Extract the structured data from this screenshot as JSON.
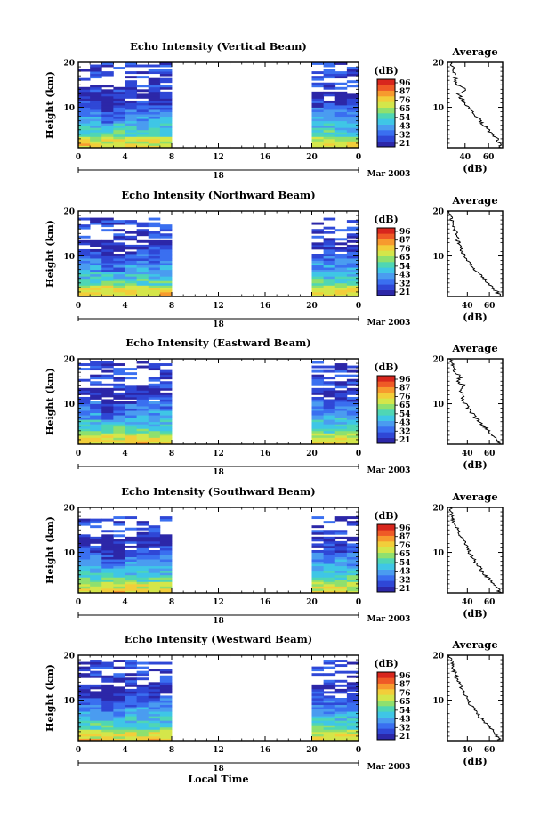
{
  "figure": {
    "xlabel": "Local Time",
    "date_label": "Mar 2003",
    "colorbar_unit": "(dB)",
    "average_title": "Average",
    "average_xlabel": "(dB)",
    "colorbar_ticks": [
      "96",
      "87",
      "76",
      "65",
      "54",
      "43",
      "32",
      "21"
    ],
    "colors": [
      "#2c27a8",
      "#2f47d6",
      "#3a6ff0",
      "#4a9cf0",
      "#3fc6e6",
      "#4fd6b4",
      "#8fe06e",
      "#d4e64a",
      "#f2ce3a",
      "#f79a2e",
      "#ef5a26",
      "#d8261d"
    ]
  },
  "chart_data": [
    {
      "type": "heatmap",
      "title": "Echo Intensity (Vertical Beam)",
      "ylabel": "Height (km)",
      "x_ticks": [
        "0",
        "4",
        "8",
        "12",
        "16",
        "20",
        "0"
      ],
      "date_tick": "18",
      "xlim": [
        0,
        24
      ],
      "ylim": [
        1,
        20
      ],
      "y_ticks": [
        "20",
        "10"
      ],
      "data_gaps": [
        [
          8,
          20
        ]
      ],
      "echo_top_km": 19.5,
      "avg_xticks": [
        "40",
        "60"
      ],
      "avg_xlim": [
        25,
        72
      ],
      "average_profile": [
        [
          1,
          70
        ],
        [
          2,
          69
        ],
        [
          3,
          67
        ],
        [
          4,
          63
        ],
        [
          5,
          60
        ],
        [
          6,
          56
        ],
        [
          7,
          53
        ],
        [
          8,
          50
        ],
        [
          9,
          47
        ],
        [
          10,
          43
        ],
        [
          11,
          40
        ],
        [
          12,
          37
        ],
        [
          13,
          34
        ],
        [
          14,
          40
        ],
        [
          15,
          33
        ],
        [
          16,
          32
        ],
        [
          17,
          31
        ],
        [
          18,
          30
        ],
        [
          19,
          29
        ],
        [
          20,
          28
        ]
      ]
    },
    {
      "type": "heatmap",
      "title": "Echo Intensity (Northward Beam)",
      "ylabel": "Height (km)",
      "x_ticks": [
        "0",
        "4",
        "8",
        "12",
        "16",
        "20",
        "0"
      ],
      "date_tick": "18",
      "xlim": [
        0,
        24
      ],
      "ylim": [
        1,
        20
      ],
      "y_ticks": [
        "20",
        "10"
      ],
      "data_gaps": [
        [
          8,
          20
        ]
      ],
      "echo_top_km": 18,
      "avg_xticks": [
        "40",
        "60"
      ],
      "avg_xlim": [
        22,
        72
      ],
      "average_profile": [
        [
          1,
          70
        ],
        [
          2,
          67
        ],
        [
          3,
          63
        ],
        [
          4,
          59
        ],
        [
          5,
          55
        ],
        [
          6,
          51
        ],
        [
          7,
          47
        ],
        [
          8,
          44
        ],
        [
          9,
          41
        ],
        [
          10,
          37
        ],
        [
          11,
          35
        ],
        [
          12,
          33
        ],
        [
          13,
          32
        ],
        [
          14,
          31
        ],
        [
          15,
          30
        ],
        [
          16,
          28
        ],
        [
          17,
          27
        ],
        [
          18,
          26
        ],
        [
          19,
          25
        ],
        [
          20,
          24
        ]
      ]
    },
    {
      "type": "heatmap",
      "title": "Echo Intensity (Eastward Beam)",
      "ylabel": "Height (km)",
      "x_ticks": [
        "0",
        "4",
        "8",
        "12",
        "16",
        "20",
        "0"
      ],
      "date_tick": "18",
      "xlim": [
        0,
        24
      ],
      "ylim": [
        1,
        20
      ],
      "y_ticks": [
        "20",
        "10"
      ],
      "data_gaps": [
        [
          8,
          20
        ]
      ],
      "echo_top_km": 19,
      "avg_xticks": [
        "40",
        "60"
      ],
      "avg_xlim": [
        22,
        72
      ],
      "average_profile": [
        [
          1,
          70
        ],
        [
          2,
          67
        ],
        [
          3,
          63
        ],
        [
          4,
          59
        ],
        [
          5,
          55
        ],
        [
          6,
          51
        ],
        [
          7,
          47
        ],
        [
          8,
          44
        ],
        [
          9,
          41
        ],
        [
          10,
          38
        ],
        [
          11,
          36
        ],
        [
          12,
          35
        ],
        [
          13,
          33
        ],
        [
          14,
          38
        ],
        [
          15,
          30
        ],
        [
          16,
          34
        ],
        [
          17,
          29
        ],
        [
          18,
          27
        ],
        [
          19,
          26
        ],
        [
          20,
          24
        ]
      ]
    },
    {
      "type": "heatmap",
      "title": "Echo Intensity (Southward Beam)",
      "ylabel": "Height (km)",
      "x_ticks": [
        "0",
        "4",
        "8",
        "12",
        "16",
        "20",
        "0"
      ],
      "date_tick": "18",
      "xlim": [
        0,
        24
      ],
      "ylim": [
        1,
        20
      ],
      "y_ticks": [
        "20",
        "10"
      ],
      "data_gaps": [
        [
          8,
          20
        ]
      ],
      "echo_top_km": 17.5,
      "avg_xticks": [
        "40",
        "60"
      ],
      "avg_xlim": [
        22,
        72
      ],
      "average_profile": [
        [
          1,
          70
        ],
        [
          2,
          67
        ],
        [
          3,
          64
        ],
        [
          4,
          60
        ],
        [
          5,
          56
        ],
        [
          6,
          53
        ],
        [
          7,
          50
        ],
        [
          8,
          47
        ],
        [
          9,
          44
        ],
        [
          10,
          42
        ],
        [
          11,
          40
        ],
        [
          12,
          38
        ],
        [
          13,
          36
        ],
        [
          14,
          31
        ],
        [
          15,
          33
        ],
        [
          16,
          29
        ],
        [
          17,
          27
        ],
        [
          18,
          26
        ],
        [
          19,
          25
        ],
        [
          20,
          24
        ]
      ]
    },
    {
      "type": "heatmap",
      "title": "Echo Intensity (Westward Beam)",
      "ylabel": "Height (km)",
      "x_ticks": [
        "0",
        "4",
        "8",
        "12",
        "16",
        "20",
        "0"
      ],
      "date_tick": "18",
      "xlim": [
        0,
        24
      ],
      "ylim": [
        1,
        20
      ],
      "y_ticks": [
        "20",
        "10"
      ],
      "data_gaps": [
        [
          8,
          20
        ]
      ],
      "echo_top_km": 18.5,
      "avg_xticks": [
        "40",
        "60"
      ],
      "avg_xlim": [
        22,
        72
      ],
      "average_profile": [
        [
          1,
          70
        ],
        [
          2,
          67
        ],
        [
          3,
          64
        ],
        [
          4,
          60
        ],
        [
          5,
          56
        ],
        [
          6,
          52
        ],
        [
          7,
          49
        ],
        [
          8,
          46
        ],
        [
          9,
          43
        ],
        [
          10,
          41
        ],
        [
          11,
          38
        ],
        [
          12,
          36
        ],
        [
          13,
          34
        ],
        [
          14,
          33
        ],
        [
          15,
          30
        ],
        [
          16,
          29
        ],
        [
          17,
          27
        ],
        [
          18,
          26
        ],
        [
          19,
          25
        ],
        [
          20,
          24
        ]
      ]
    }
  ]
}
